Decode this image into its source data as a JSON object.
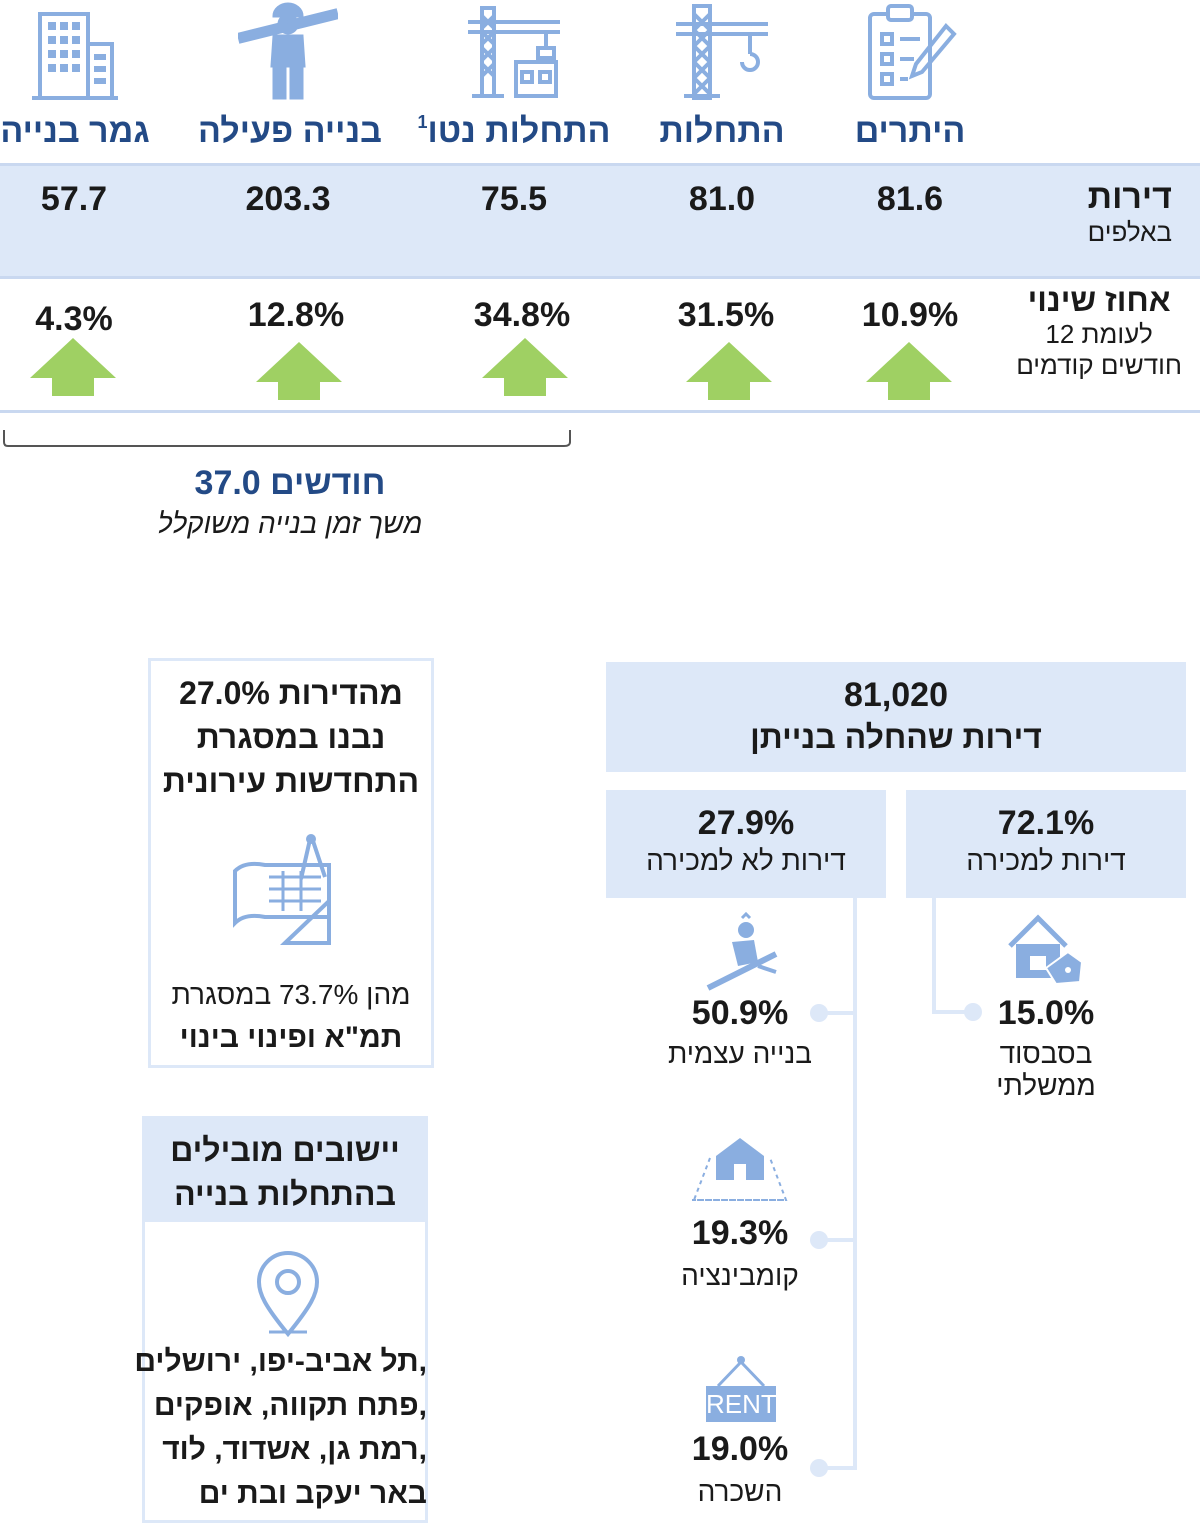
{
  "columns": [
    {
      "label": "היתרים",
      "sup": "",
      "value": "81.6",
      "change": "10.9%",
      "icon": "clipboard-pen-icon"
    },
    {
      "label": "התחלות",
      "sup": "",
      "value": "81.0",
      "change": "31.5%",
      "icon": "crane-hook-icon"
    },
    {
      "label": "התחלות נטו",
      "sup": "1",
      "value": "75.5",
      "change": "34.8%",
      "icon": "crane-building-icon"
    },
    {
      "label": "בנייה פעילה",
      "sup": "",
      "value": "203.3",
      "change": "12.8%",
      "icon": "construction-worker-icon"
    },
    {
      "label": "גמר בנייה",
      "sup": "",
      "value": "57.7",
      "change": "4.3%",
      "icon": "office-building-icon"
    }
  ],
  "row_labels": {
    "units_title": "דירות",
    "units_sub": "באלפים",
    "change_title": "אחוז שינוי",
    "change_sub1": "לעומת 12",
    "change_sub2": "חודשים קודמים"
  },
  "duration": {
    "value": "37.0 חודשים",
    "label": "משך זמן בנייה משוקלל"
  },
  "starts": {
    "total": "81,020",
    "total_label": "דירות שהחלה בנייתן"
  },
  "for_sale": {
    "pct": "72.1%",
    "label": "דירות למכירה",
    "sub_pct": "15.0%",
    "sub_label": "בסבסוד ממשלתי"
  },
  "not_for_sale": {
    "pct": "27.9%",
    "label": "דירות לא למכירה",
    "items": [
      {
        "pct": "50.9%",
        "label": "בנייה עצמית",
        "icon": "builder-icon"
      },
      {
        "pct": "19.3%",
        "label": "קומבינציה",
        "icon": "house-land-icon"
      },
      {
        "pct": "19.0%",
        "label": "השכרה",
        "icon": "rent-sign-icon",
        "sign": "RENT"
      }
    ]
  },
  "urban_renewal": {
    "line1": "27.0% מהדירות",
    "line2": "נבנו במסגרת",
    "line3": "התחדשות עירונית",
    "sub_line1": "מהן 73.7% במסגרת",
    "sub_line2": "תמ\"א ופינוי בינוי"
  },
  "leading": {
    "title1": "יישובים מובילים",
    "title2": "בהתחלות בנייה",
    "cities": [
      "תל אביב-יפו, ירושלים,",
      "פתח תקווה, אופקים,",
      "רמת גן, אשדוד, לוד,",
      "באר יעקב ובת ים"
    ]
  },
  "chart_data": {
    "type": "table",
    "title": "",
    "categories": [
      "היתרים",
      "התחלות",
      "התחלות נטו",
      "בנייה פעילה",
      "גמר בנייה"
    ],
    "series": [
      {
        "name": "דירות (באלפים)",
        "values": [
          81.6,
          81.0,
          75.5,
          203.3,
          57.7
        ]
      },
      {
        "name": "אחוז שינוי לעומת 12 חודשים קודמים",
        "values": [
          10.9,
          31.5,
          34.8,
          12.8,
          4.3
        ]
      }
    ]
  },
  "colors": {
    "navy": "#234a86",
    "band": "#dde8f8",
    "arrow": "#9fd063",
    "icon": "#8aaee0"
  }
}
